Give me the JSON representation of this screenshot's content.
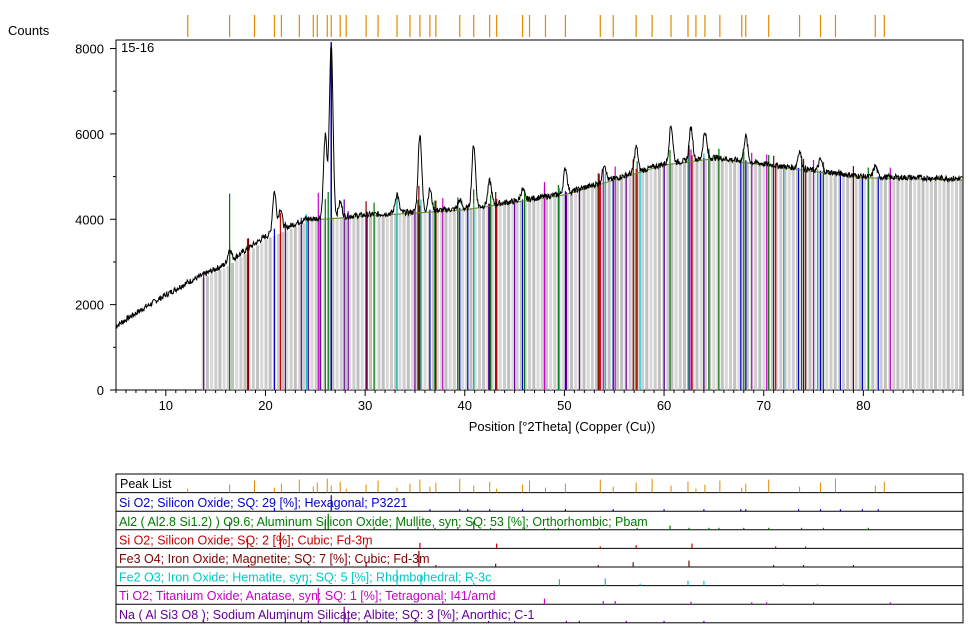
{
  "chart_data": {
    "type": "line",
    "sample_label": "15-16",
    "y_label": "Counts",
    "x_label": "Position [°2Theta] (Copper (Cu))",
    "xlim": [
      5,
      90
    ],
    "ylim": [
      0,
      8200
    ],
    "x_ticks": [
      10,
      20,
      30,
      40,
      50,
      60,
      70,
      80
    ],
    "y_ticks": [
      0,
      2000,
      4000,
      6000,
      8000
    ],
    "pattern": {
      "background": [
        [
          5,
          1500
        ],
        [
          8,
          1950
        ],
        [
          12,
          2500
        ],
        [
          16,
          2950
        ],
        [
          20,
          3600
        ],
        [
          24,
          4000
        ],
        [
          30,
          4100
        ],
        [
          40,
          4250
        ],
        [
          50,
          4600
        ],
        [
          55,
          4950
        ],
        [
          60,
          5300
        ],
        [
          65,
          5450
        ],
        [
          70,
          5300
        ],
        [
          75,
          5150
        ],
        [
          80,
          5000
        ],
        [
          90,
          4950
        ]
      ],
      "peaks": [
        {
          "x": 16.4,
          "y": 3300
        },
        {
          "x": 20.9,
          "y": 4650
        },
        {
          "x": 21.5,
          "y": 4250
        },
        {
          "x": 26.0,
          "y": 5950
        },
        {
          "x": 26.6,
          "y": 8100
        },
        {
          "x": 27.5,
          "y": 4400
        },
        {
          "x": 33.2,
          "y": 4600
        },
        {
          "x": 35.5,
          "y": 6000
        },
        {
          "x": 36.5,
          "y": 4700
        },
        {
          "x": 39.5,
          "y": 4450
        },
        {
          "x": 40.9,
          "y": 5750
        },
        {
          "x": 42.5,
          "y": 4900
        },
        {
          "x": 45.8,
          "y": 4700
        },
        {
          "x": 50.1,
          "y": 5200
        },
        {
          "x": 54.0,
          "y": 5300
        },
        {
          "x": 57.2,
          "y": 5700
        },
        {
          "x": 60.7,
          "y": 6200
        },
        {
          "x": 62.7,
          "y": 6150
        },
        {
          "x": 64.1,
          "y": 6050
        },
        {
          "x": 68.2,
          "y": 5950
        },
        {
          "x": 73.6,
          "y": 5600
        },
        {
          "x": 75.7,
          "y": 5400
        },
        {
          "x": 81.2,
          "y": 5250
        }
      ]
    },
    "peak_list": {
      "title": "Peak List",
      "positions": [
        12.2,
        16.4,
        18.9,
        20.9,
        21.6,
        23.4,
        24.8,
        25.2,
        26.2,
        26.6,
        27.5,
        28.1,
        30.1,
        31.3,
        33.2,
        34.5,
        35.5,
        36.5,
        37.1,
        39.5,
        40.9,
        42.5,
        43.2,
        45.8,
        46.5,
        48.1,
        50.1,
        53.6,
        54.9,
        57.2,
        58.8,
        60.7,
        62.4,
        63.2,
        64.1,
        65.6,
        67.8,
        68.2,
        70.5,
        73.6,
        75.7,
        77.2,
        81.2,
        82.1
      ]
    },
    "phases": [
      {
        "label": "Si O2; Silicon Oxide; SQ: 29 [%]; Hexagonal; P3221",
        "color": "#0000c8",
        "x": [
          20.9,
          26.6,
          36.5,
          39.5,
          40.3,
          42.5,
          45.8,
          50.1,
          54.9,
          60.0,
          64.0,
          67.7,
          68.2,
          73.5,
          75.7,
          77.7,
          79.9,
          81.5
        ],
        "rel": [
          22,
          100,
          7,
          7,
          4,
          6,
          4,
          13,
          4,
          9,
          2,
          6,
          7,
          2,
          3,
          2,
          2,
          2
        ]
      },
      {
        "label": "Al2 ( Al2.8 Si1.2) ) O9.6; Aluminum Silicon Oxide; Mullite, syn; SQ: 53 [%]; Orthorhombic; Pbam",
        "color": "#007800",
        "x": [
          16.4,
          26.0,
          26.3,
          30.9,
          33.2,
          35.3,
          37.0,
          39.3,
          40.9,
          42.6,
          46.0,
          48.0,
          49.4,
          53.5,
          57.3,
          60.6,
          62.5,
          64.5,
          65.5,
          68.0,
          70.5,
          73.8,
          76.0,
          80.5
        ],
        "rel": [
          50,
          60,
          100,
          18,
          40,
          20,
          8,
          18,
          55,
          8,
          4,
          4,
          6,
          5,
          12,
          26,
          12,
          6,
          4,
          8,
          5,
          6,
          5,
          4
        ]
      },
      {
        "label": "Si O2; Silicon Oxide; SQ: 2 [%]; Cubic; Fd-3m",
        "color": "#c80000",
        "x": [
          18.2,
          21.5,
          30.1,
          35.5,
          43.2,
          53.6,
          57.2,
          62.8,
          71.2,
          74.2
        ],
        "rel": [
          60,
          100,
          25,
          35,
          30,
          10,
          20,
          30,
          8,
          6
        ]
      },
      {
        "label": "Fe3 O4; Iron Oxide; Magnetite; SQ: 7 [%]; Cubic; Fd-3m",
        "color": "#800000",
        "x": [
          18.3,
          30.1,
          35.4,
          37.1,
          43.1,
          53.4,
          56.9,
          62.5,
          71.0,
          74.0,
          79.0
        ],
        "rel": [
          8,
          30,
          100,
          8,
          20,
          10,
          30,
          40,
          4,
          8,
          4
        ]
      },
      {
        "label": "Fe2 O3; Iron Oxide; Hematite, syn; SQ: 5 [%]; Rhombohedral; R-3c",
        "color": "#00c8c8",
        "x": [
          24.1,
          33.2,
          35.6,
          40.9,
          49.5,
          54.1,
          57.6,
          62.4,
          64.0,
          72.0,
          75.4
        ],
        "rel": [
          30,
          100,
          70,
          20,
          40,
          45,
          10,
          30,
          30,
          10,
          8
        ]
      },
      {
        "label": "Ti O2; Titanium Oxide; Anatase, syn; SQ: 1 [%]; Tetragonal; I41/amd",
        "color": "#c800c8",
        "x": [
          25.3,
          37.8,
          48.0,
          53.9,
          55.1,
          62.7,
          68.8,
          70.3,
          75.0,
          82.7
        ],
        "rel": [
          100,
          20,
          35,
          20,
          20,
          15,
          6,
          7,
          10,
          6
        ]
      },
      {
        "label": "Na ( Al Si3 O8 ); Sodium Aluminum Silicate; Albite; SQ: 3 [%]; Anorthic; C-1",
        "color": "#640096",
        "x": [
          13.8,
          22.0,
          23.6,
          24.3,
          25.5,
          27.9,
          28.3,
          30.2,
          35.0,
          42.4,
          45.0,
          50.2,
          51.5,
          56.2,
          60.0,
          64.0
        ],
        "rel": [
          15,
          35,
          20,
          15,
          12,
          100,
          30,
          15,
          8,
          8,
          6,
          5,
          5,
          5,
          4,
          4
        ]
      }
    ]
  }
}
